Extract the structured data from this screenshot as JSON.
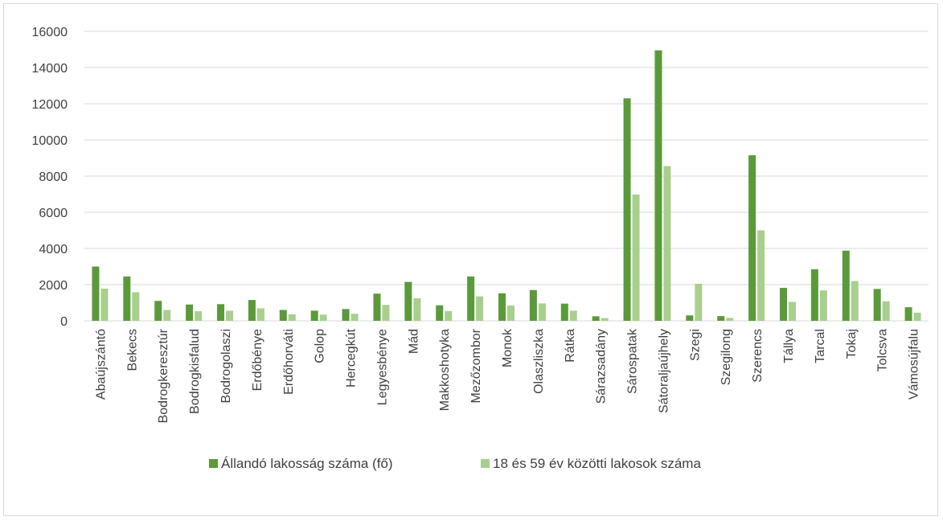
{
  "chart_data": {
    "type": "bar",
    "ylim": [
      0,
      16000
    ],
    "yticks": [
      0,
      2000,
      4000,
      6000,
      8000,
      10000,
      12000,
      14000,
      16000
    ],
    "grid": true,
    "legend_position": "bottom",
    "categories": [
      "Abaújszántó",
      "Bekecs",
      "Bodrogkeresztúr",
      "Bodrogkisfalud",
      "Bodrogolaszi",
      "Erdőbénye",
      "Erdőhorváti",
      "Golop",
      "Herceg­kút",
      "Legyesbénye",
      "Mád",
      "Makkoshotyka",
      "Mezőzombor",
      "Monok",
      "Olaszliszka",
      "Rátka",
      "Sárazsadány",
      "Sárospatak",
      "Sátoraljaújhely",
      "Szegi",
      "Szegilong",
      "Szerencs",
      "Tállya",
      "Tarcal",
      "Tokaj",
      "Tolcsva",
      "Vámosújfalu"
    ],
    "series": [
      {
        "name": "Állandó lakosság száma (fő)",
        "color": "#5a9a3a",
        "values": [
          3000,
          2450,
          1100,
          900,
          920,
          1150,
          600,
          560,
          650,
          1500,
          2150,
          860,
          2450,
          1520,
          1700,
          950,
          250,
          12300,
          14950,
          300,
          260,
          9150,
          1820,
          2850,
          3880,
          1760,
          750
        ]
      },
      {
        "name": "18 és 59 év közötti lakosok száma",
        "color": "#a9cf8e",
        "values": [
          1780,
          1580,
          600,
          530,
          560,
          690,
          360,
          340,
          390,
          880,
          1250,
          540,
          1350,
          850,
          960,
          560,
          150,
          6980,
          8550,
          2050,
          160,
          5000,
          1040,
          1680,
          2200,
          1080,
          450
        ]
      }
    ]
  }
}
